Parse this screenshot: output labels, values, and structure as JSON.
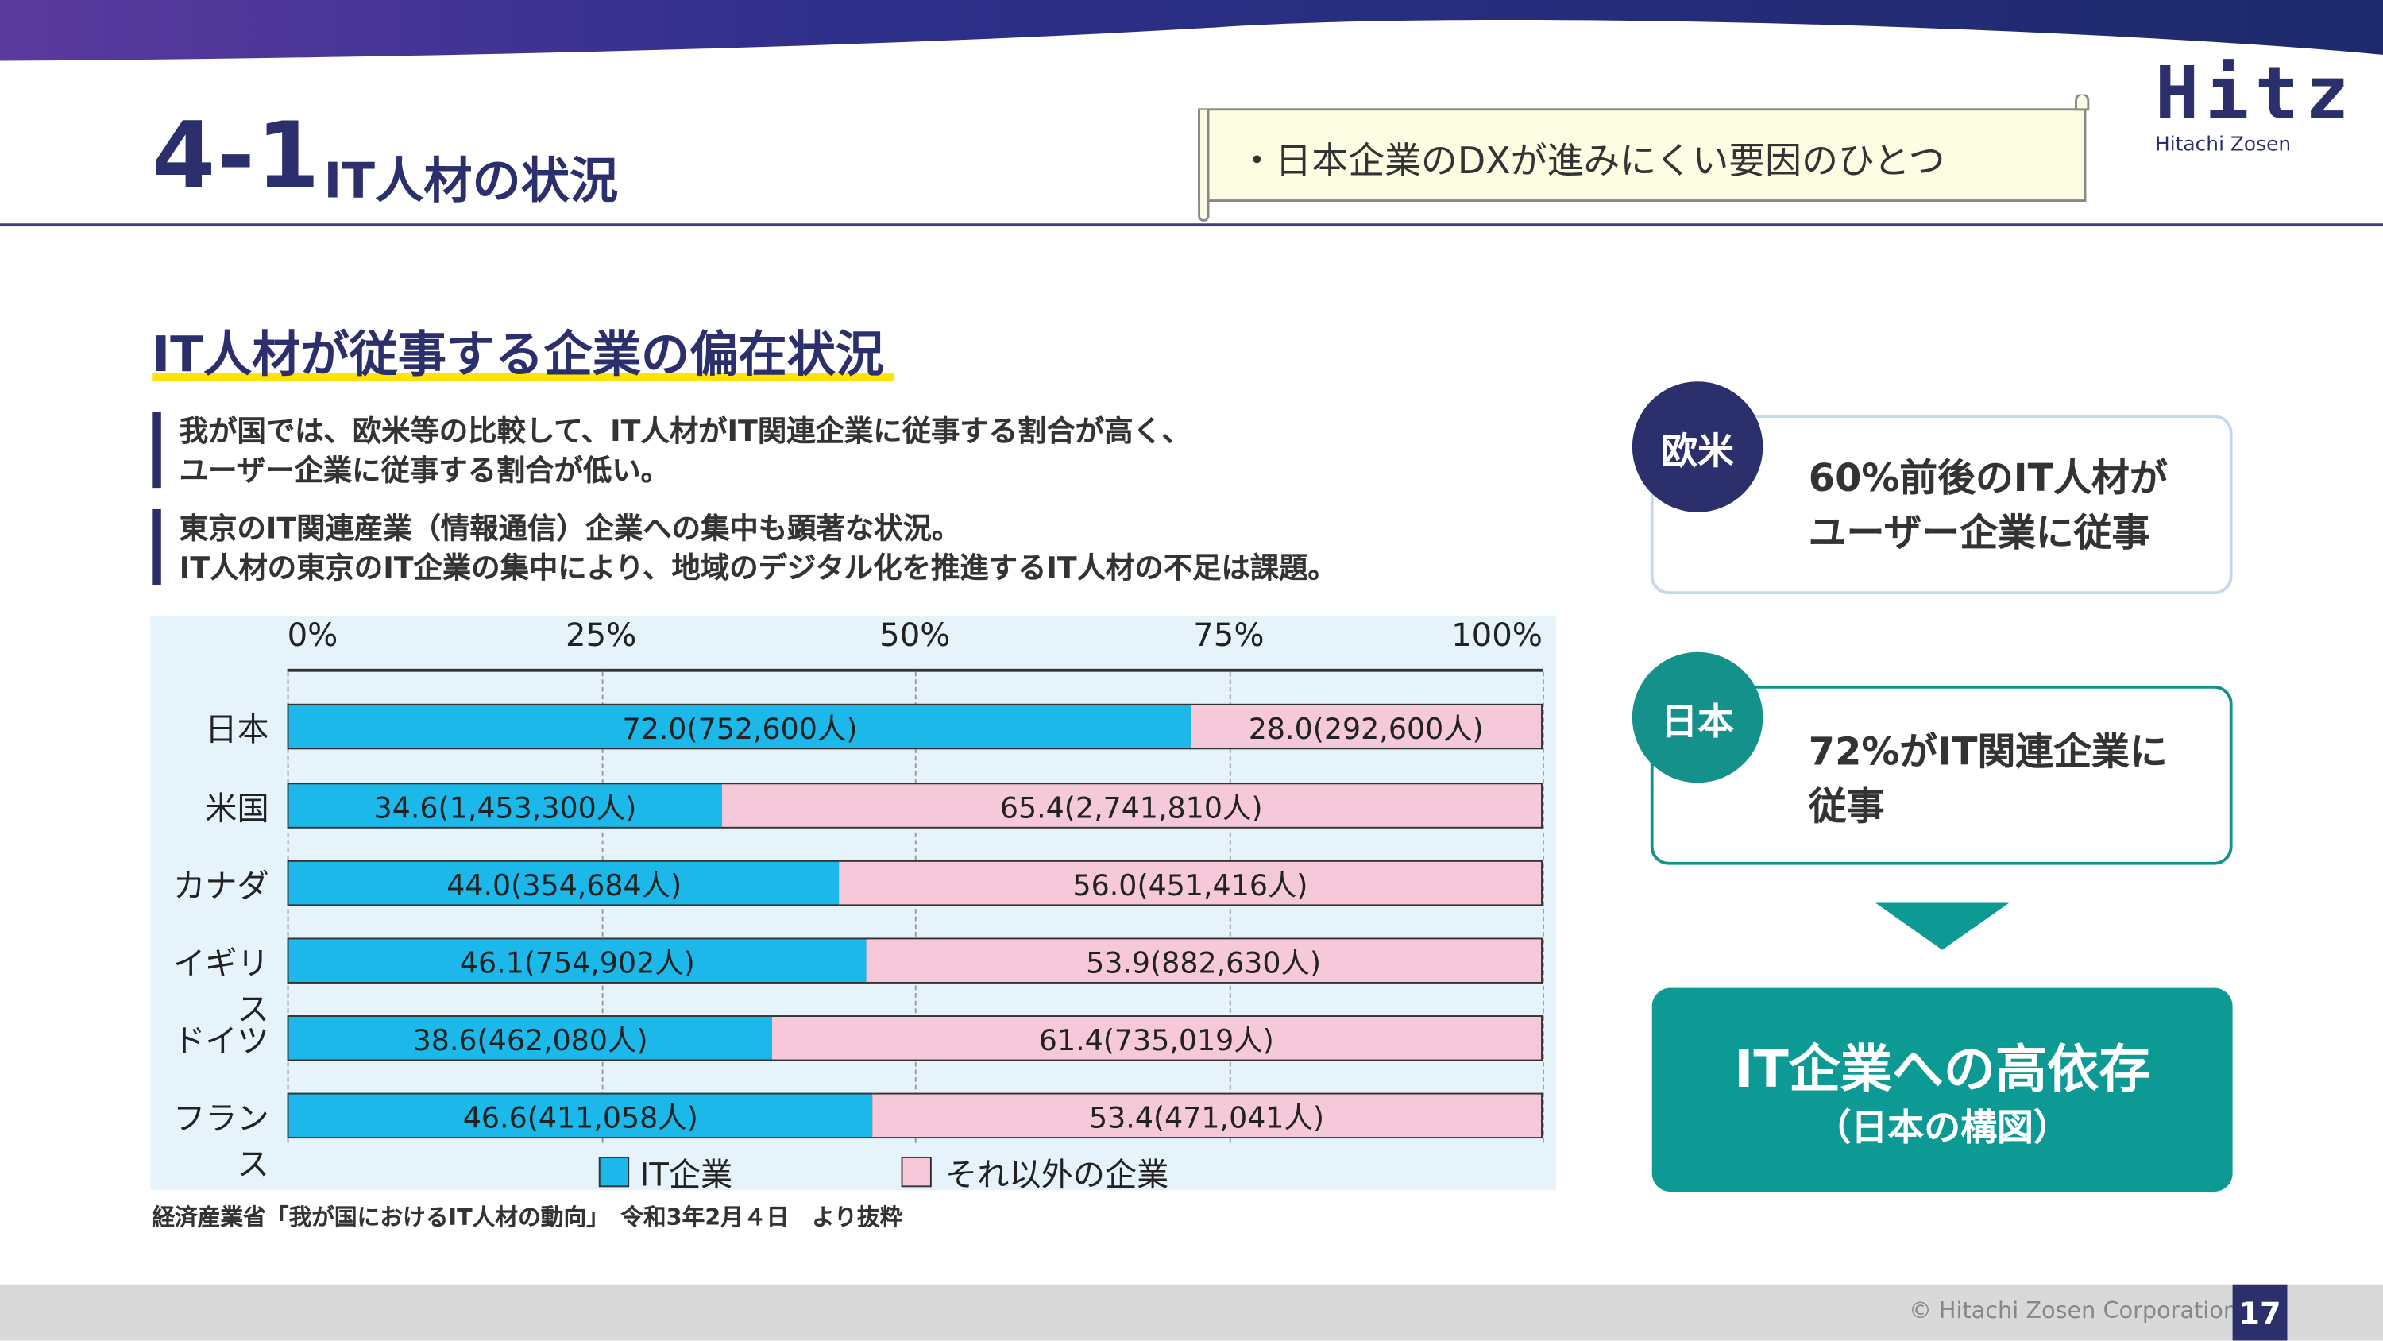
{
  "header": {
    "section_number": "4-1",
    "section_title": "IT人材の状況",
    "scroll_note": "・日本企業のDXが進みにくい要因のひとつ",
    "logo_text": "Hitz",
    "logo_sub": "Hitachi Zosen"
  },
  "main": {
    "heading": "IT人材が従事する企業の偏在状況",
    "bullets": [
      {
        "lines": [
          "我が国では、欧米等の比較して、IT人材がIT関連企業に従事する割合が高く、",
          "ユーザー企業に従事する割合が低い。"
        ]
      },
      {
        "lines": [
          "東京のIT関連産業（情報通信）企業への集中も顕著な状況。",
          "IT人材の東京のIT企業の集中により、地域のデジタル化を推進するIT人材の不足は課題。"
        ]
      }
    ],
    "source": "経済産業省「我が国におけるIT人材の動向」　令和3年2月４日　より抜粋"
  },
  "chart_data": {
    "type": "bar",
    "stacked": true,
    "orientation": "horizontal",
    "categories": [
      "日本",
      "米国",
      "カナダ",
      "イギリス",
      "ドイツ",
      "フランス"
    ],
    "xlim": [
      0,
      100
    ],
    "x_ticks": [
      "0%",
      "25%",
      "50%",
      "75%",
      "100%"
    ],
    "grid": true,
    "legend_position": "bottom",
    "series": [
      {
        "name": "IT企業",
        "color": "#1cb8ea",
        "values": [
          72.0,
          34.6,
          44.0,
          46.1,
          38.6,
          46.6
        ],
        "labels": [
          "72.0(752,600人)",
          "34.6(1,453,300人)",
          "44.0(354,684人)",
          "46.1(754,902人)",
          "38.6(462,080人)",
          "46.6(411,058人)"
        ]
      },
      {
        "name": "それ以外の企業",
        "color": "#f6c9da",
        "values": [
          28.0,
          65.4,
          56.0,
          53.9,
          61.4,
          53.4
        ],
        "labels": [
          "28.0(292,600人)",
          "65.4(2,741,810人)",
          "56.0(451,416人)",
          "53.9(882,630人)",
          "61.4(735,019人)",
          "53.4(471,041人)"
        ]
      }
    ]
  },
  "side": {
    "western": {
      "badge": "欧米",
      "lines": [
        "60%前後のIT人材が",
        "ユーザー企業に従事"
      ],
      "color": "#2b2f6b"
    },
    "japan": {
      "badge": "日本",
      "lines": [
        "72%がIT関連企業に",
        "従事"
      ],
      "color": "#14918a"
    },
    "conclusion": {
      "title": "IT企業への高依存",
      "subtitle": "（日本の構図）",
      "color": "#0e9a94"
    }
  },
  "footer": {
    "copyright": "© Hitachi Zosen Corporation",
    "page": "17"
  }
}
